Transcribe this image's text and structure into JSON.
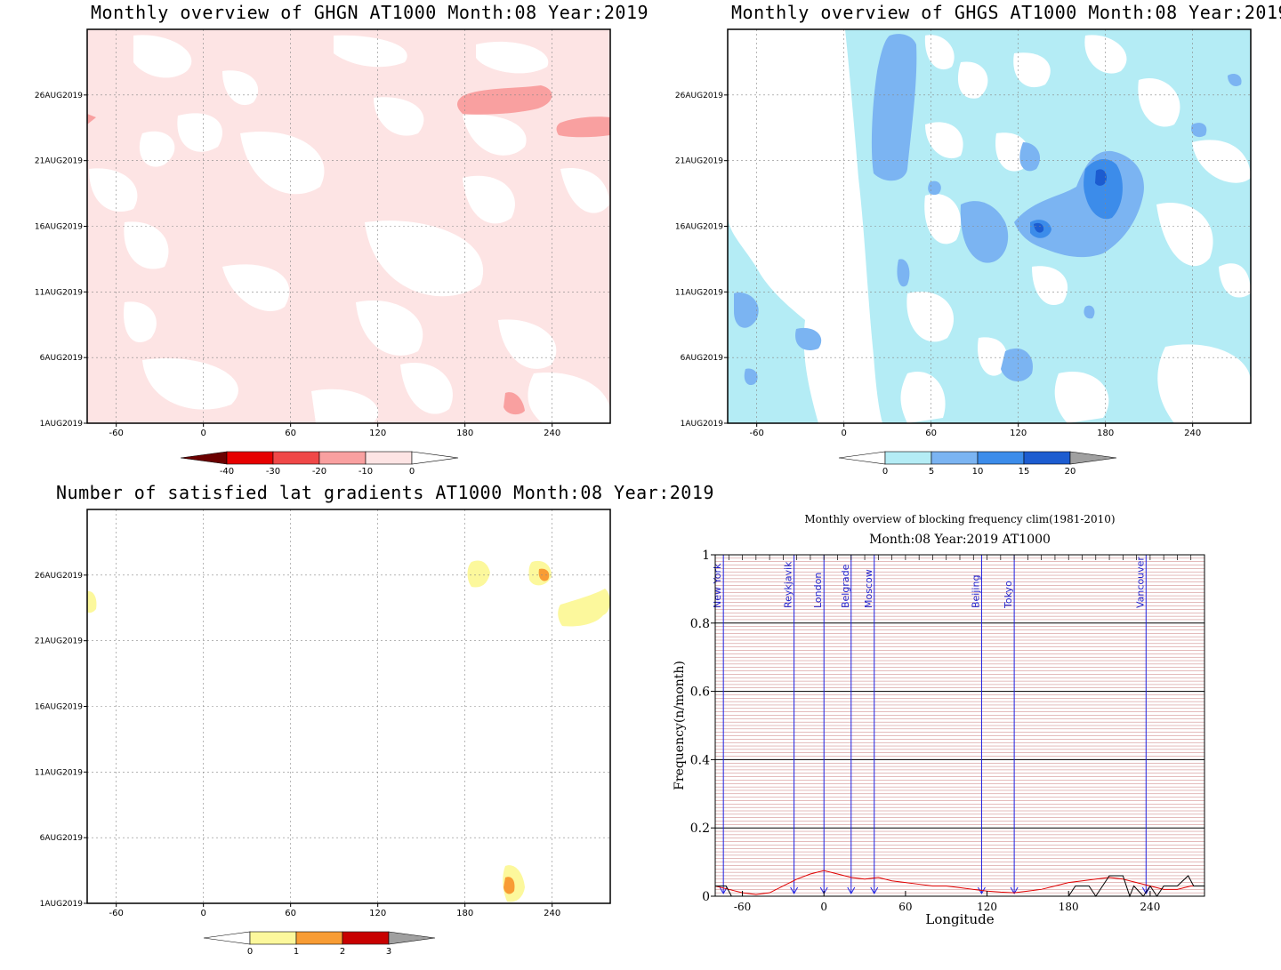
{
  "panels": {
    "ghgn": {
      "title": "Monthly overview of GHGN AT1000 Month:08 Year:2019",
      "colorbar": {
        "labels": [
          "-40",
          "-30",
          "-20",
          "-10",
          "0"
        ],
        "colors": [
          "#6b0000",
          "#e60000",
          "#f04848",
          "#f9a0a0",
          "#fde4e4",
          "#ffffff"
        ]
      },
      "fill_color": "#fde4e4",
      "blob_color": "#f9a0a0"
    },
    "ghgs": {
      "title": "Monthly overview of GHGS AT1000 Month:08 Year:2019",
      "colorbar": {
        "labels": [
          "0",
          "5",
          "10",
          "15",
          "20"
        ],
        "colors": [
          "#ffffff",
          "#b4ecf5",
          "#7bb4f2",
          "#3c8cea",
          "#1c5cd0",
          "#a0a0a0"
        ]
      },
      "fill_color": "#b4ecf5",
      "blob_color": "#7bb4f2",
      "deep_color": "#3c8cea",
      "deepest_color": "#1c5cd0"
    },
    "nsat": {
      "title": "Number of satisfied lat gradients AT1000 Month:08 Year:2019",
      "colorbar": {
        "labels": [
          "0",
          "1",
          "2",
          "3"
        ],
        "colors": [
          "#ffffff",
          "#fcf89c",
          "#f89c34",
          "#c80000",
          "#a0a0a0"
        ]
      },
      "fill_color": "#fcf89c",
      "deep_color": "#f89c34"
    },
    "blocking": {
      "title": "Monthly overview of blocking frequency clim(1981-2010)",
      "subtitle": "Month:08 Year:2019  AT1000",
      "ylabel": "Frequency(n/month)",
      "xlabel": "Longitude"
    }
  },
  "contour_axes": {
    "x_ticks": [
      "-60",
      "0",
      "60",
      "120",
      "180",
      "240"
    ],
    "x_values": [
      -60,
      0,
      60,
      120,
      180,
      240
    ],
    "xlim": [
      -80,
      280
    ],
    "y_ticks": [
      "1AUG2019",
      "6AUG2019",
      "11AUG2019",
      "16AUG2019",
      "21AUG2019",
      "26AUG2019"
    ],
    "y_values": [
      1,
      6,
      11,
      16,
      21,
      26
    ],
    "ylim": [
      1,
      31
    ]
  },
  "chart_data": [
    {
      "type": "heatmap",
      "title": "Monthly overview of GHGN AT1000 Month:08 Year:2019",
      "xlim": [
        -80,
        280
      ],
      "ylim": [
        1,
        31
      ],
      "levels": [
        -40,
        -30,
        -20,
        -10,
        0
      ]
    },
    {
      "type": "heatmap",
      "title": "Monthly overview of GHGS AT1000 Month:08 Year:2019",
      "xlim": [
        -80,
        280
      ],
      "ylim": [
        1,
        31
      ],
      "levels": [
        0,
        5,
        10,
        15,
        20
      ]
    },
    {
      "type": "heatmap",
      "title": "Number of satisfied lat gradients AT1000 Month:08 Year:2019",
      "xlim": [
        -80,
        280
      ],
      "ylim": [
        1,
        31
      ],
      "levels": [
        0,
        1,
        2,
        3
      ]
    },
    {
      "type": "line",
      "title": "Monthly overview of blocking frequency clim(1981-2010)",
      "subtitle": "Month:08 Year:2019  AT1000",
      "xlabel": "Longitude",
      "ylabel": "Frequency(n/month)",
      "xlim": [
        -80,
        280
      ],
      "ylim": [
        0,
        1
      ],
      "x_ticks": [
        "-60",
        "0",
        "60",
        "120",
        "180",
        "240"
      ],
      "x_tick_values": [
        -60,
        0,
        60,
        120,
        180,
        240
      ],
      "y_ticks": [
        "0",
        "0.2",
        "0.4",
        "0.6",
        "0.8",
        "1"
      ],
      "y_tick_values": [
        0,
        0.2,
        0.4,
        0.6,
        0.8,
        1
      ],
      "grid": true,
      "cities": [
        {
          "name": "New York",
          "lon": -74
        },
        {
          "name": "Reykjavik",
          "lon": -22
        },
        {
          "name": "London",
          "lon": 0
        },
        {
          "name": "Belgrade",
          "lon": 20
        },
        {
          "name": "Moscow",
          "lon": 37
        },
        {
          "name": "Beijing",
          "lon": 116
        },
        {
          "name": "Tokyo",
          "lon": 140
        },
        {
          "name": "Vancouver",
          "lon": 237
        }
      ],
      "series": [
        {
          "color": "#e00000",
          "x": [
            -80,
            -70,
            -60,
            -50,
            -40,
            -30,
            -20,
            -10,
            0,
            10,
            20,
            30,
            40,
            50,
            60,
            70,
            80,
            90,
            100,
            110,
            120,
            130,
            140,
            150,
            160,
            170,
            180,
            190,
            200,
            210,
            220,
            230,
            240,
            250,
            260,
            270,
            280
          ],
          "values": [
            0.03,
            0.02,
            0.01,
            0.005,
            0.01,
            0.03,
            0.05,
            0.065,
            0.075,
            0.065,
            0.055,
            0.05,
            0.055,
            0.045,
            0.04,
            0.035,
            0.03,
            0.03,
            0.025,
            0.02,
            0.015,
            0.012,
            0.01,
            0.015,
            0.02,
            0.03,
            0.04,
            0.045,
            0.05,
            0.055,
            0.05,
            0.04,
            0.03,
            0.02,
            0.02,
            0.03,
            0.03
          ]
        },
        {
          "color": "#000000",
          "x": [
            -80,
            -72,
            -68,
            -60,
            180,
            185,
            195,
            200,
            210,
            220,
            225,
            228,
            235,
            240,
            245,
            250,
            260,
            268,
            272,
            276,
            280
          ],
          "values": [
            0.03,
            0.03,
            0.0,
            0.0,
            0.0,
            0.03,
            0.03,
            0.0,
            0.06,
            0.06,
            0.0,
            0.03,
            0.0,
            0.03,
            0.0,
            0.03,
            0.03,
            0.06,
            0.03,
            0.03,
            0.03
          ]
        }
      ]
    }
  ]
}
